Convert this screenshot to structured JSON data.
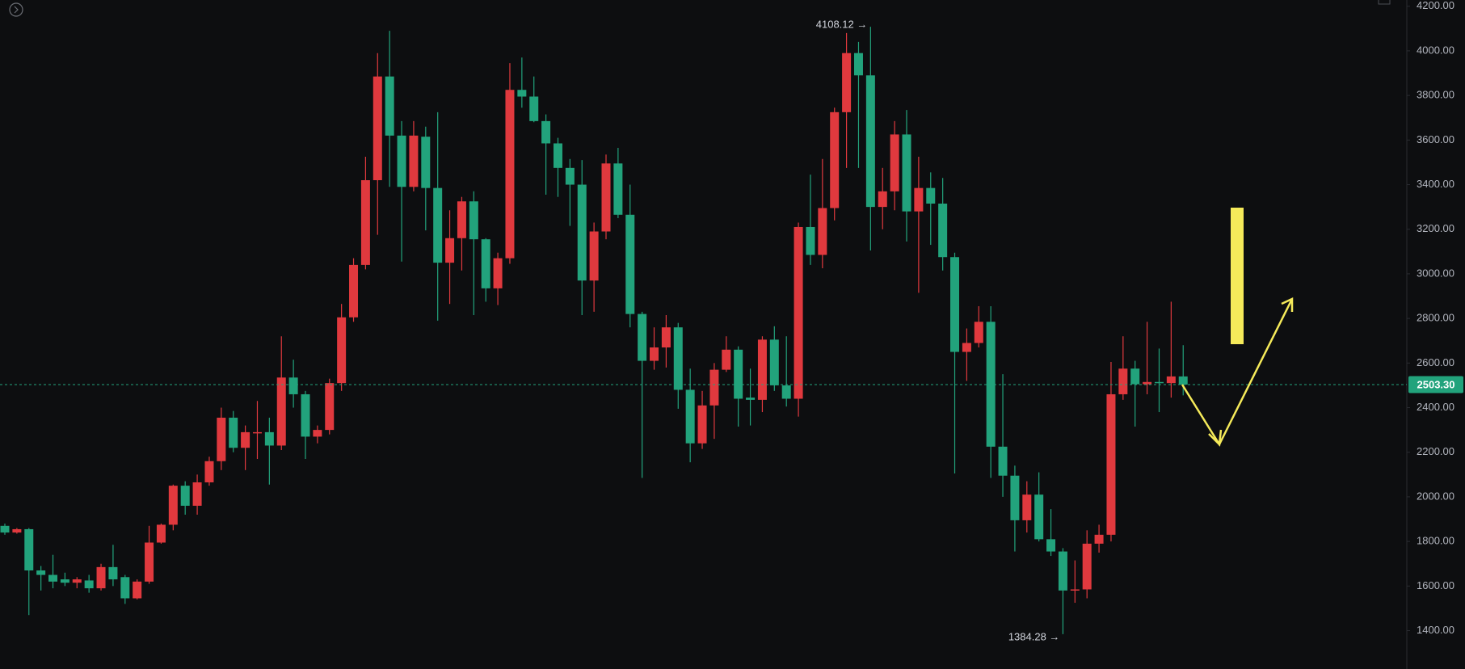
{
  "chart_data": {
    "type": "candlestick",
    "open": [
      1870,
      1840,
      1855,
      1670,
      1650,
      1630,
      1615,
      1625,
      1590,
      1685,
      1640,
      1545,
      1620,
      1795,
      1875,
      2050,
      1960,
      2065,
      2160,
      2355,
      2220,
      2285,
      2290,
      2230,
      2535,
      2460,
      2270,
      2300,
      2510,
      2805,
      3040,
      3420,
      3885,
      3620,
      3390,
      3615,
      3385,
      3050,
      3160,
      3325,
      3155,
      2935,
      3070,
      3825,
      3795,
      3685,
      3585,
      3475,
      3400,
      2970,
      3190,
      3495,
      3265,
      2820,
      2610,
      2670,
      2760,
      2480,
      2240,
      2410,
      2570,
      2660,
      2445,
      2435,
      2705,
      2500,
      2440,
      3210,
      3085,
      3295,
      3725,
      3990,
      3890,
      3300,
      3370,
      3625,
      3280,
      3385,
      3315,
      3075,
      2650,
      2690,
      2785,
      2225,
      2095,
      1895,
      2010,
      1810,
      1755,
      1580,
      1585,
      1790,
      1830,
      2460,
      2575,
      2505,
      2515,
      2510,
      2540
    ],
    "high": [
      1880,
      1860,
      1860,
      1690,
      1740,
      1660,
      1640,
      1650,
      1700,
      1785,
      1650,
      1630,
      1870,
      1880,
      2055,
      2070,
      2100,
      2180,
      2400,
      2385,
      2320,
      2430,
      2355,
      2720,
      2615,
      2475,
      2320,
      2530,
      2865,
      3070,
      3525,
      3990,
      4090,
      3685,
      3685,
      3660,
      3725,
      3285,
      3345,
      3370,
      3160,
      3095,
      3945,
      3970,
      3885,
      3715,
      3610,
      3515,
      3510,
      3230,
      3535,
      3565,
      3400,
      2830,
      2760,
      2815,
      2780,
      2575,
      2475,
      2600,
      2720,
      2675,
      2575,
      2720,
      2765,
      2720,
      3230,
      3445,
      3515,
      3745,
      4080,
      4040,
      4108.12,
      3475,
      3685,
      3735,
      3525,
      3455,
      3430,
      3095,
      2755,
      2855,
      2855,
      2550,
      2140,
      2070,
      2110,
      1945,
      1770,
      1715,
      1850,
      1875,
      2605,
      2720,
      2610,
      2785,
      2665,
      2875,
      2680
    ],
    "low": [
      1830,
      1835,
      1470,
      1580,
      1590,
      1600,
      1590,
      1570,
      1580,
      1600,
      1520,
      1540,
      1610,
      1790,
      1850,
      1920,
      1920,
      2050,
      2120,
      2200,
      2120,
      2170,
      2055,
      2210,
      2400,
      2170,
      2240,
      2280,
      2475,
      2785,
      3020,
      3175,
      3390,
      3055,
      3370,
      3195,
      2790,
      2865,
      3015,
      2815,
      2875,
      2860,
      3045,
      3745,
      3680,
      3355,
      3345,
      3215,
      2815,
      2830,
      3155,
      3250,
      2760,
      2085,
      2570,
      2580,
      2395,
      2155,
      2215,
      2260,
      2560,
      2315,
      2320,
      2380,
      2475,
      2405,
      2360,
      3040,
      3025,
      3240,
      3475,
      3475,
      3105,
      3200,
      3285,
      3145,
      2915,
      3130,
      3015,
      2105,
      2520,
      2670,
      2085,
      2000,
      1755,
      1840,
      1800,
      1735,
      1384.28,
      1525,
      1545,
      1750,
      1800,
      2435,
      2315,
      2460,
      2380,
      2445,
      2455
    ],
    "close": [
      1840,
      1855,
      1670,
      1650,
      1620,
      1615,
      1630,
      1590,
      1685,
      1630,
      1545,
      1620,
      1795,
      1875,
      2050,
      1960,
      2065,
      2160,
      2355,
      2220,
      2290,
      2290,
      2230,
      2535,
      2460,
      2270,
      2300,
      2510,
      2805,
      3040,
      3420,
      3885,
      3620,
      3390,
      3620,
      3385,
      3050,
      3160,
      3325,
      3155,
      2935,
      3070,
      3825,
      3795,
      3685,
      3585,
      3475,
      3400,
      2970,
      3190,
      3495,
      3265,
      2820,
      2610,
      2670,
      2760,
      2480,
      2240,
      2410,
      2570,
      2660,
      2440,
      2435,
      2705,
      2500,
      2440,
      3210,
      3085,
      3295,
      3725,
      3990,
      3890,
      3300,
      3370,
      3625,
      3280,
      3385,
      3315,
      3075,
      2650,
      2690,
      2785,
      2225,
      2095,
      1895,
      2010,
      1810,
      1755,
      1580,
      1585,
      1790,
      1830,
      2460,
      2575,
      2505,
      2515,
      2510,
      2540,
      2503.3
    ],
    "up_color": "#e0393e",
    "down_color": "#22a37c",
    "ylim": [
      1228,
      4228
    ],
    "yticks": [
      {
        "value": 1400,
        "label": "1400.00"
      },
      {
        "value": 1600,
        "label": "1600.00"
      },
      {
        "value": 1800,
        "label": "1800.00"
      },
      {
        "value": 2000,
        "label": "2000.00"
      },
      {
        "value": 2200,
        "label": "2200.00"
      },
      {
        "value": 2400,
        "label": "2400.00"
      },
      {
        "value": 2600,
        "label": "2600.00"
      },
      {
        "value": 2800,
        "label": "2800.00"
      },
      {
        "value": 3000,
        "label": "3000.00"
      },
      {
        "value": 3200,
        "label": "3200.00"
      },
      {
        "value": 3400,
        "label": "3400.00"
      },
      {
        "value": 3600,
        "label": "3600.00"
      },
      {
        "value": 3800,
        "label": "3800.00"
      },
      {
        "value": 4000,
        "label": "4000.00"
      },
      {
        "value": 4200,
        "label": "4200.00"
      }
    ],
    "last_price": {
      "value": 2503.3,
      "label": "2503.30"
    },
    "annotations": [
      {
        "value": 4108.12,
        "label": "4108.12 →"
      },
      {
        "value": 1384.28,
        "label": "1384.28 →"
      }
    ]
  }
}
